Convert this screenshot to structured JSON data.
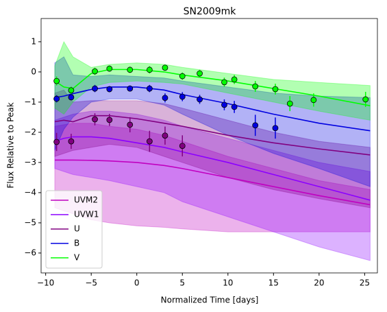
{
  "chart_data": {
    "type": "line",
    "title": "SN2009mk",
    "x_label": "Normalized Time [days]",
    "y_label": "Flux Relative to Peak",
    "xlim": [
      -10.5,
      26.4
    ],
    "ylim": [
      -6.66,
      1.77
    ],
    "xticks": [
      {
        "value": -10,
        "label": "−10"
      },
      {
        "value": -5,
        "label": "−5"
      },
      0,
      5,
      10,
      15,
      20,
      25
    ],
    "yticks": [
      {
        "value": -6,
        "label": "−6"
      },
      {
        "value": -5,
        "label": "−5"
      },
      {
        "value": -4,
        "label": "−4"
      },
      {
        "value": -3,
        "label": "−3"
      },
      {
        "value": -2,
        "label": "−2"
      },
      {
        "value": -1,
        "label": "−1"
      },
      0,
      1
    ],
    "legend": "lower left",
    "band_opacity": 0.3,
    "series": [
      {
        "name": "UVM2",
        "color": "#c000c0",
        "x": [
          -9,
          -8,
          -7,
          -5,
          -3,
          0,
          3,
          5,
          10,
          15,
          20,
          25.6
        ],
        "values": [
          -2.92,
          -2.92,
          -2.92,
          -2.93,
          -2.95,
          -3.0,
          -3.1,
          -3.2,
          -3.5,
          -3.8,
          -4.1,
          -4.4
        ],
        "lower": [
          -4.5,
          -4.6,
          -4.7,
          -4.9,
          -5.0,
          -5.1,
          -5.15,
          -5.2,
          -5.3,
          -5.3,
          -5.3,
          -5.3
        ],
        "upper": [
          -1.8,
          -1.75,
          -1.7,
          -1.7,
          -1.8,
          -1.9,
          -2.1,
          -2.3,
          -2.8,
          -3.2,
          -3.6,
          -3.9
        ]
      },
      {
        "name": "UVW1",
        "color": "#8b00ff",
        "x": [
          -9,
          -8,
          -7,
          -5,
          -3,
          0,
          3,
          5,
          10,
          15,
          20,
          25.6
        ],
        "values": [
          -2.3,
          -2.2,
          -2.15,
          -2.15,
          -2.2,
          -2.35,
          -2.5,
          -2.65,
          -3.0,
          -3.4,
          -3.8,
          -4.25
        ],
        "lower": [
          -3.2,
          -3.3,
          -3.4,
          -3.5,
          -3.6,
          -3.8,
          -4.0,
          -4.3,
          -4.8,
          -5.3,
          -5.8,
          -6.25
        ],
        "upper": [
          -1.6,
          -1.5,
          -1.4,
          -1.3,
          -1.3,
          -1.4,
          -1.6,
          -1.8,
          -2.2,
          -2.6,
          -3.0,
          -3.3
        ]
      },
      {
        "name": "U",
        "color": "#800080",
        "x": [
          -9,
          -8,
          -7,
          -5,
          -3,
          0,
          3,
          5,
          10,
          15,
          20,
          25.6
        ],
        "values": [
          -1.65,
          -1.6,
          -1.65,
          -1.45,
          -1.45,
          -1.55,
          -1.7,
          -1.8,
          -2.1,
          -2.35,
          -2.55,
          -2.75
        ],
        "lower": [
          -2.8,
          -2.7,
          -2.6,
          -2.5,
          -2.4,
          -2.5,
          -2.8,
          -3.0,
          -3.5,
          -3.9,
          -4.2,
          -4.5
        ],
        "upper": [
          -0.7,
          -0.6,
          -1.0,
          -0.95,
          -0.95,
          -0.95,
          -1.05,
          -1.2,
          -1.6,
          -2.0,
          -2.3,
          -2.5
        ],
        "points": {
          "x": [
            -8.8,
            -7.2,
            -4.6,
            -3.0,
            -0.75,
            1.4,
            3.1,
            5.0
          ],
          "values": [
            -2.32,
            -2.3,
            -1.57,
            -1.59,
            -1.75,
            -2.3,
            -2.11,
            -2.45
          ],
          "errors": [
            0.3,
            0.25,
            0.2,
            0.2,
            0.25,
            0.35,
            0.3,
            0.35
          ]
        }
      },
      {
        "name": "B",
        "color": "#0000e0",
        "x": [
          -9,
          -8,
          -7,
          -5,
          -3,
          0,
          3,
          5,
          10,
          15,
          20,
          25.6
        ],
        "values": [
          -0.85,
          -0.8,
          -0.72,
          -0.58,
          -0.5,
          -0.5,
          -0.6,
          -0.75,
          -1.05,
          -1.4,
          -1.7,
          -1.95
        ],
        "lower": [
          -2.6,
          -1.9,
          -1.5,
          -1.0,
          -0.9,
          -0.9,
          -1.1,
          -1.4,
          -2.1,
          -2.7,
          -3.2,
          -3.8
        ],
        "upper": [
          0.3,
          0.5,
          -0.1,
          -0.15,
          -0.1,
          -0.15,
          -0.2,
          -0.3,
          -0.5,
          -0.7,
          -0.8,
          -0.85
        ],
        "points": {
          "x": [
            -8.8,
            -7.2,
            -4.6,
            -3.0,
            -0.75,
            1.4,
            3.1,
            5.0,
            6.9,
            9.6,
            10.7,
            13.0,
            15.2
          ],
          "values": [
            -0.89,
            -0.84,
            -0.55,
            -0.57,
            -0.55,
            -0.55,
            -0.86,
            -0.82,
            -0.91,
            -1.09,
            -1.16,
            -1.77,
            -1.86
          ],
          "errors": [
            0.12,
            0.1,
            0.12,
            0.1,
            0.1,
            0.12,
            0.15,
            0.15,
            0.15,
            0.18,
            0.2,
            0.35,
            0.35
          ]
        }
      },
      {
        "name": "V",
        "color": "#00ff00",
        "x": [
          -9,
          -8,
          -7,
          -5,
          -3,
          0,
          3,
          5,
          10,
          15,
          20,
          25.6
        ],
        "values": [
          -0.3,
          -0.5,
          -0.55,
          -0.05,
          0.08,
          0.08,
          0.0,
          -0.1,
          -0.3,
          -0.55,
          -0.8,
          -1.12
        ],
        "lower": [
          -1.2,
          -1.4,
          -1.0,
          -0.5,
          -0.35,
          -0.3,
          -0.35,
          -0.4,
          -0.7,
          -1.0,
          -1.3,
          -1.6
        ],
        "upper": [
          0.2,
          1.0,
          0.5,
          0.15,
          0.25,
          0.3,
          0.25,
          0.15,
          -0.05,
          -0.25,
          -0.35,
          -0.45
        ],
        "points": {
          "x": [
            -8.8,
            -7.2,
            -4.6,
            -3.0,
            -0.75,
            1.4,
            3.1,
            5.0,
            6.9,
            9.6,
            10.7,
            13.0,
            15.2,
            16.8,
            19.4,
            25.1
          ],
          "values": [
            -0.3,
            -0.61,
            0.02,
            0.11,
            0.07,
            0.07,
            0.14,
            -0.14,
            -0.05,
            -0.34,
            -0.25,
            -0.48,
            -0.57,
            -1.05,
            -0.93,
            -0.91
          ],
          "errors": [
            0.15,
            0.12,
            0.12,
            0.1,
            0.1,
            0.12,
            0.1,
            0.12,
            0.12,
            0.15,
            0.15,
            0.18,
            0.18,
            0.25,
            0.22,
            0.25
          ]
        }
      }
    ]
  }
}
